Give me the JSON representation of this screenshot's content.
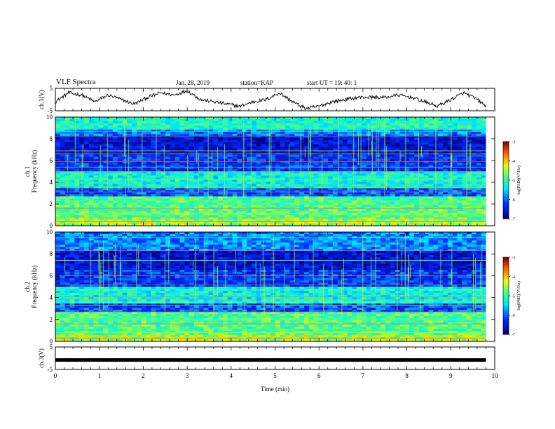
{
  "header": {
    "title": "VLF Spectra",
    "date": "Jan. 28, 2019",
    "station": "station=KAP",
    "start": "start UT =  19: 40: 1"
  },
  "chart_data": [
    {
      "type": "line",
      "panel": "ch1-waveform",
      "ylabel": "ch.1(V)",
      "ylim": [
        -5,
        5
      ],
      "yticks": [
        "5",
        "-5"
      ],
      "x": [
        0,
        0.3,
        0.6,
        0.9,
        1.2,
        1.5,
        1.8,
        2.1,
        2.4,
        2.7,
        3.0,
        3.3,
        3.6,
        3.9,
        4.2,
        4.5,
        4.8,
        5.1,
        5.4,
        5.7,
        6.0,
        6.3,
        6.6,
        6.9,
        7.2,
        7.5,
        7.8,
        8.1,
        8.4,
        8.7,
        9.0,
        9.3,
        9.6,
        9.8
      ],
      "values": [
        -1,
        3,
        2,
        -1,
        2,
        0,
        -2,
        1,
        3,
        2,
        4,
        0,
        -1,
        -2,
        -3,
        -1,
        0,
        3,
        -1,
        -4,
        -3,
        -1,
        0,
        1,
        1,
        1,
        2,
        1,
        -1,
        -3,
        0,
        3,
        0,
        -3
      ]
    },
    {
      "type": "heatmap",
      "panel": "ch1-spectrogram",
      "ylabel": "ch.1\nFrequency (kHz)",
      "ylim": [
        0,
        10
      ],
      "yticks": [
        "0",
        "2",
        "4",
        "6",
        "8",
        "10"
      ],
      "colorbar": {
        "label": "log(PSD)(V²/Hz)",
        "range": [
          -7,
          -3
        ],
        "ticks": [
          "-3",
          "-4",
          "-5",
          "-6",
          "-7"
        ]
      }
    },
    {
      "type": "heatmap",
      "panel": "ch2-spectrogram",
      "ylabel": "ch.2\nFrequency (kHz)",
      "ylim": [
        0,
        10
      ],
      "yticks": [
        "0",
        "2",
        "4",
        "6",
        "8",
        "10"
      ],
      "colorbar": {
        "label": "log(PSD)(V²/Hz)",
        "range": [
          -7,
          -3
        ],
        "ticks": [
          "-3",
          "-4",
          "-5",
          "-6",
          "-7"
        ]
      }
    },
    {
      "type": "line",
      "panel": "ch3-waveform",
      "ylabel": "ch.3(V)",
      "ylim": [
        -5,
        5
      ],
      "yticks": [
        "5",
        "-5"
      ],
      "x": [
        0,
        9.8
      ],
      "values": [
        -0.8,
        -0.8
      ]
    }
  ],
  "xaxis": {
    "label": "Time (min)",
    "range": [
      0,
      10
    ],
    "ticks": [
      "0",
      "1",
      "2",
      "3",
      "4",
      "5",
      "6",
      "7",
      "8",
      "9",
      "10"
    ]
  },
  "colors": {
    "spectro_bg": "#1030b0",
    "waveform": "#000000"
  }
}
